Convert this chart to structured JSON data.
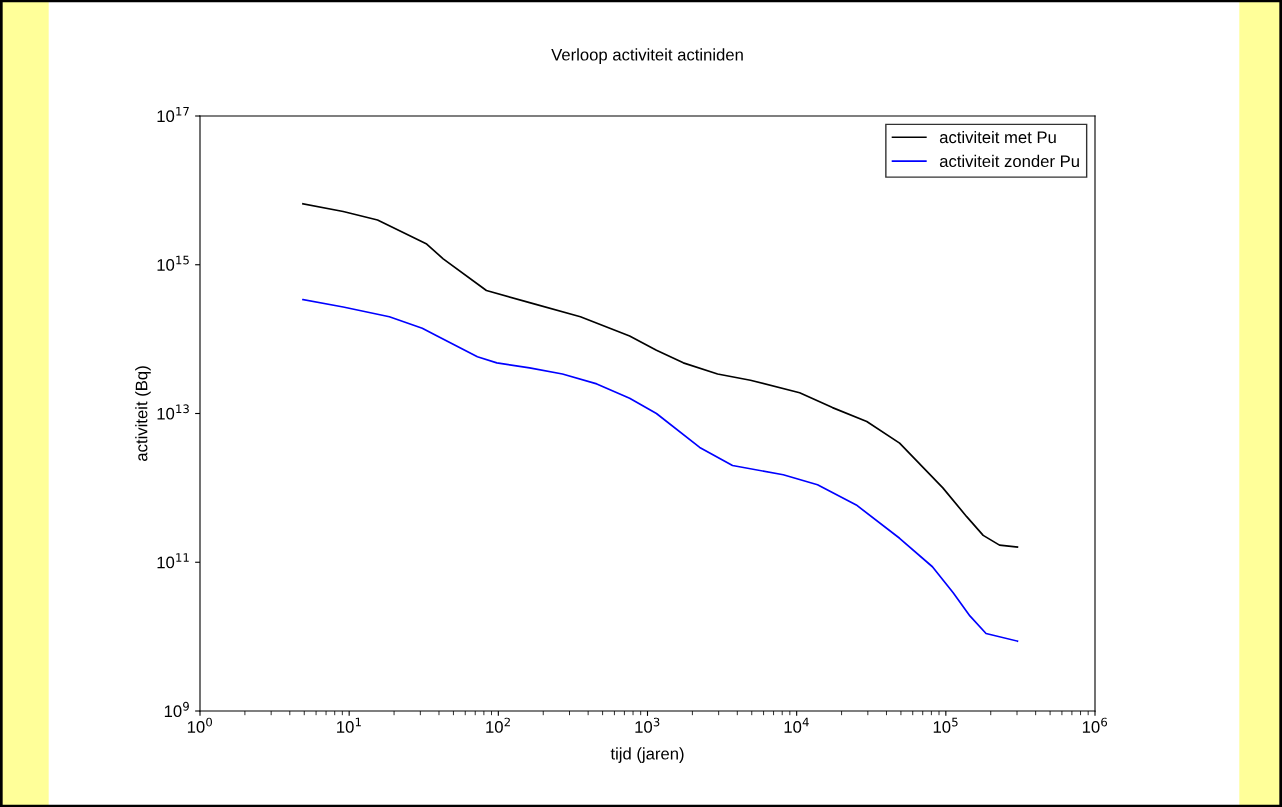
{
  "chart_data": {
    "type": "line",
    "title": "Verloop activiteit actiniden",
    "xlabel": "tijd (jaren)",
    "ylabel": "activiteit (Bq)",
    "log": "xy",
    "xlim": [
      1,
      1000000
    ],
    "ylim": [
      1000000000.0,
      1e+17
    ],
    "xticks": [
      {
        "value": 1,
        "label": "10$^{0}$"
      },
      {
        "value": 10,
        "label": "10$^{1}$"
      },
      {
        "value": 100,
        "label": "10$^{2}$"
      },
      {
        "value": 1000,
        "label": "10$^{3}$"
      },
      {
        "value": 10000,
        "label": "10$^{4}$"
      },
      {
        "value": 100000,
        "label": "10$^{5}$"
      },
      {
        "value": 1000000,
        "label": "10$^{6}$"
      }
    ],
    "yticks": [
      {
        "value": 1000000000.0,
        "label": "10$^{9}$"
      },
      {
        "value": 100000000000.0,
        "label": "10$^{11}$"
      },
      {
        "value": 10000000000000.0,
        "label": "10$^{13}$"
      },
      {
        "value": 1000000000000000.0,
        "label": "10$^{15}$"
      },
      {
        "value": 1e+17,
        "label": "10$^{17}$"
      }
    ],
    "grid": false,
    "legend": "top right",
    "marker": "none",
    "line_style": "solid",
    "series": [
      {
        "name": "activiteit met Pu",
        "color": "#000000",
        "x": [
          4.9,
          9.12,
          15.5,
          33.1,
          42.7,
          83.2,
          162,
          355,
          759,
          1148,
          1738,
          2951,
          4898,
          10470,
          17380,
          29510,
          48980,
          95500,
          138000,
          178000,
          229000,
          302000
        ],
        "values": [
          6600000000000000.0,
          5200000000000000.0,
          4000000000000000.0,
          1900000000000000.0,
          1200000000000000.0,
          450000000000000.0,
          310000000000000.0,
          200000000000000.0,
          110000000000000.0,
          71000000000000.0,
          48000000000000.0,
          34000000000000.0,
          28000000000000.0,
          19000000000000.0,
          12000000000000.0,
          7800000000000.0,
          4000000000000.0,
          1000000000000.0,
          410000000000.0,
          230000000000.0,
          170000000000.0,
          160000000000.0
        ]
      },
      {
        "name": "activiteit zonder Pu",
        "color": "#0000ff",
        "x": [
          4.9,
          9.12,
          18.6,
          30.9,
          38.9,
          72.4,
          97.7,
          162,
          269,
          457,
          759,
          1148,
          2239,
          3715,
          8128,
          13800,
          25100,
          48980,
          81300,
          112000,
          145000,
          186000,
          302000
        ],
        "values": [
          340000000000000.0,
          270000000000000.0,
          200000000000000.0,
          140000000000000.0,
          110000000000000.0,
          58000000000000.0,
          48000000000000.0,
          41000000000000.0,
          34000000000000.0,
          25000000000000.0,
          16000000000000.0,
          10000000000000.0,
          3500000000000.0,
          2000000000000.0,
          1500000000000.0,
          1100000000000.0,
          590000000000.0,
          210000000000.0,
          87000000000.0,
          39000000000.0,
          19000000000.0,
          11000000000.0,
          8700000000.0
        ]
      }
    ]
  }
}
